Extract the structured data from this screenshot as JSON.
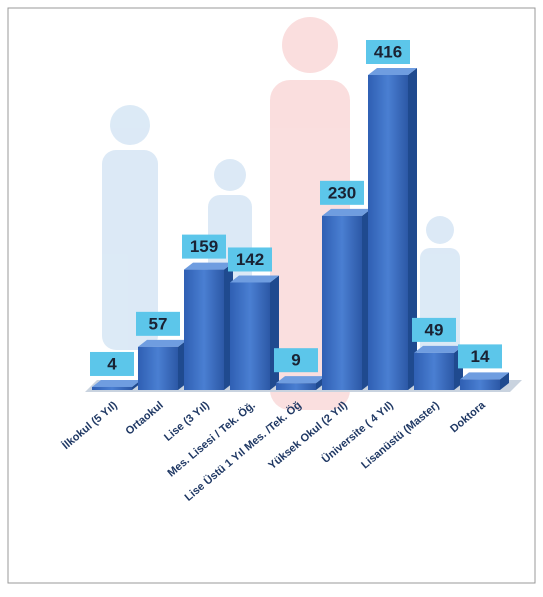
{
  "chart_data": {
    "type": "bar3d",
    "categories": [
      "İlkokul (5 Yıl)",
      "Ortaokul",
      "Lise (3 Yıl)",
      "Mes. Lisesi / Tek. Öğ.",
      "Lise Üstü 1 Yıl Mes. /Tek. Öğ",
      "Yüksek Okul (2 Yıl)",
      "Üniversite ( 4 Yıl)",
      "Lisanüstü (Master)",
      "Doktora"
    ],
    "values": [
      4,
      57,
      159,
      142,
      9,
      230,
      416,
      49,
      14
    ],
    "color": "#3b6cc0"
  }
}
